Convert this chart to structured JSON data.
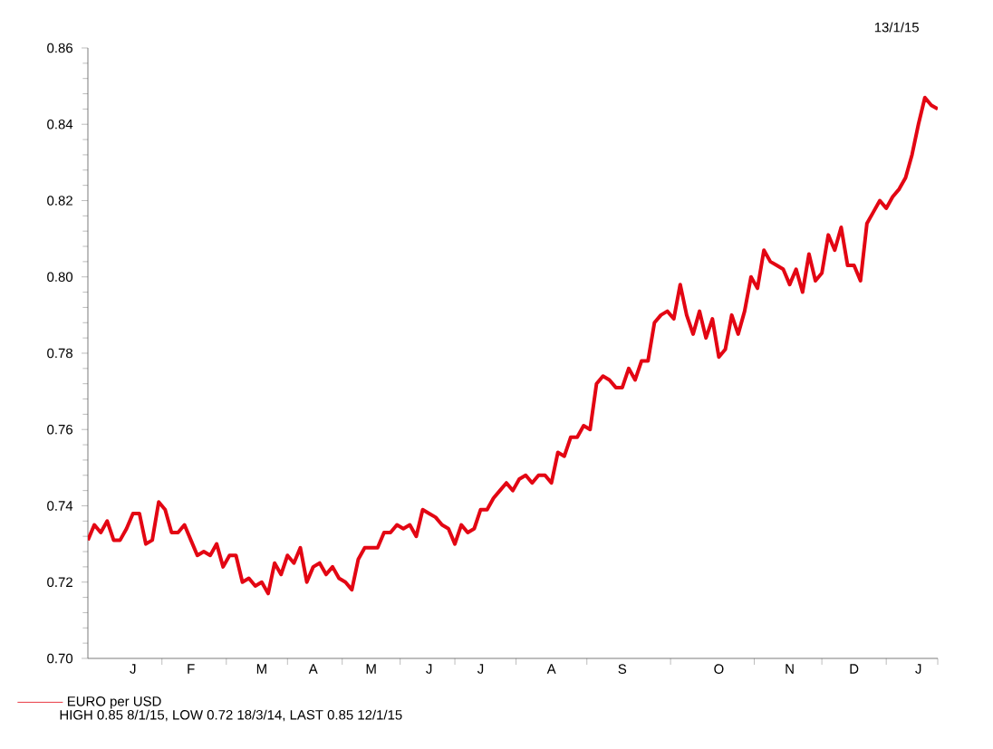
{
  "chart_data": {
    "type": "line",
    "categories": [
      null,
      null,
      null,
      null,
      null,
      null,
      null,
      "J",
      null,
      null,
      null,
      null,
      null,
      null,
      null,
      null,
      "F",
      null,
      null,
      null,
      null,
      null,
      null,
      null,
      null,
      null,
      null,
      "M",
      null,
      null,
      null,
      null,
      null,
      null,
      null,
      "A",
      null,
      null,
      null,
      null,
      null,
      null,
      null,
      null,
      "M",
      null,
      null,
      null,
      null,
      null,
      null,
      null,
      null,
      "J",
      null,
      null,
      null,
      null,
      null,
      null,
      null,
      "J",
      null,
      null,
      null,
      null,
      null,
      null,
      null,
      null,
      null,
      null,
      "A",
      null,
      null,
      null,
      null,
      null,
      null,
      null,
      null,
      null,
      null,
      "S",
      null,
      null,
      null,
      null,
      null,
      null,
      null,
      null,
      null,
      null,
      null,
      null,
      null,
      null,
      "O",
      null,
      null,
      null,
      null,
      null,
      null,
      null,
      null,
      null,
      null,
      "N",
      null,
      null,
      null,
      null,
      null,
      null,
      null,
      null,
      null,
      "D",
      null,
      null,
      null,
      null,
      null,
      null,
      null,
      null,
      null,
      "J",
      null,
      null,
      null
    ],
    "series": [
      {
        "name": "EURO per USD",
        "color": "#e30613",
        "values": [
          0.731,
          0.735,
          0.733,
          0.736,
          0.731,
          0.731,
          0.734,
          0.738,
          0.738,
          0.73,
          0.731,
          0.741,
          0.739,
          0.733,
          0.733,
          0.735,
          0.731,
          0.727,
          0.728,
          0.727,
          0.73,
          0.724,
          0.727,
          0.727,
          0.72,
          0.721,
          0.719,
          0.72,
          0.717,
          0.725,
          0.722,
          0.727,
          0.725,
          0.729,
          0.72,
          0.724,
          0.725,
          0.722,
          0.724,
          0.721,
          0.72,
          0.718,
          0.726,
          0.729,
          0.729,
          0.729,
          0.733,
          0.733,
          0.735,
          0.734,
          0.735,
          0.732,
          0.739,
          0.738,
          0.737,
          0.735,
          0.734,
          0.73,
          0.735,
          0.733,
          0.734,
          0.739,
          0.739,
          0.742,
          0.744,
          0.746,
          0.744,
          0.747,
          0.748,
          0.746,
          0.748,
          0.748,
          0.746,
          0.754,
          0.753,
          0.758,
          0.758,
          0.761,
          0.76,
          0.772,
          0.774,
          0.773,
          0.771,
          0.771,
          0.776,
          0.773,
          0.778,
          0.778,
          0.788,
          0.79,
          0.791,
          0.789,
          0.798,
          0.79,
          0.785,
          0.791,
          0.784,
          0.789,
          0.779,
          0.781,
          0.79,
          0.785,
          0.791,
          0.8,
          0.797,
          0.807,
          0.804,
          0.803,
          0.802,
          0.798,
          0.802,
          0.796,
          0.806,
          0.799,
          0.801,
          0.811,
          0.807,
          0.813,
          0.803,
          0.803,
          0.799,
          0.814,
          0.817,
          0.82,
          0.818,
          0.821,
          0.823,
          0.826,
          0.832,
          0.84,
          0.847,
          0.845,
          0.844
        ]
      }
    ],
    "ylim": [
      0.7,
      0.86
    ],
    "yticks": [
      {
        "value": 0.7,
        "label": "0.70"
      },
      {
        "value": 0.72,
        "label": "0.72"
      },
      {
        "value": 0.74,
        "label": "0.74"
      },
      {
        "value": 0.76,
        "label": "0.76"
      },
      {
        "value": 0.78,
        "label": "0.78"
      },
      {
        "value": 0.8,
        "label": "0.80"
      },
      {
        "value": 0.82,
        "label": "0.82"
      },
      {
        "value": 0.84,
        "label": "0.84"
      },
      {
        "value": 0.86,
        "label": "0.86"
      }
    ],
    "legend": "bottom left",
    "annotations": [
      "13/1/15",
      "HIGH 0.85 8/1/15, LOW 0.72 18/3/14, LAST 0.85 12/1/15"
    ]
  }
}
